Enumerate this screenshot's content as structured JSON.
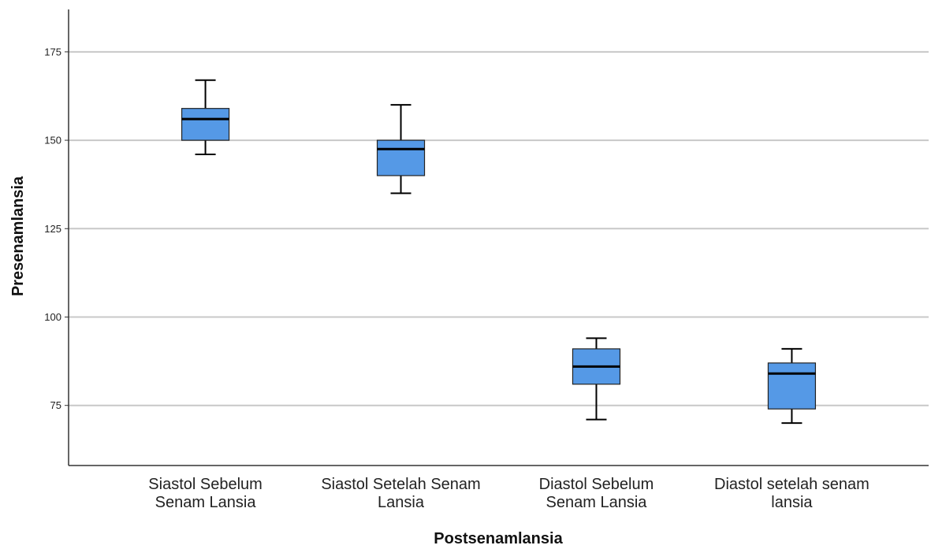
{
  "chart_data": {
    "type": "boxplot",
    "xlabel": "Postsenamlansia",
    "ylabel": "Presenamlansia",
    "ylim": [
      58,
      187
    ],
    "yticks": [
      75,
      100,
      125,
      150,
      175
    ],
    "grid": true,
    "colors": {
      "box_fill": "#5599e6",
      "gridline": "#c8c8c8",
      "axis": "#333333"
    },
    "categories": [
      [
        "Siastol Sebelum",
        "Senam Lansia"
      ],
      [
        "Siastol Setelah Senam",
        "Lansia"
      ],
      [
        "Diastol Sebelum",
        "Senam Lansia"
      ],
      [
        "Diastol setelah senam",
        "lansia"
      ]
    ],
    "boxes": [
      {
        "min": 146,
        "q1": 150,
        "median": 156,
        "q3": 159,
        "max": 167
      },
      {
        "min": 135,
        "q1": 140,
        "median": 147.5,
        "q3": 150,
        "max": 160
      },
      {
        "min": 71,
        "q1": 81,
        "median": 86,
        "q3": 91,
        "max": 94
      },
      {
        "min": 70,
        "q1": 74,
        "median": 84,
        "q3": 87,
        "max": 91
      }
    ]
  }
}
